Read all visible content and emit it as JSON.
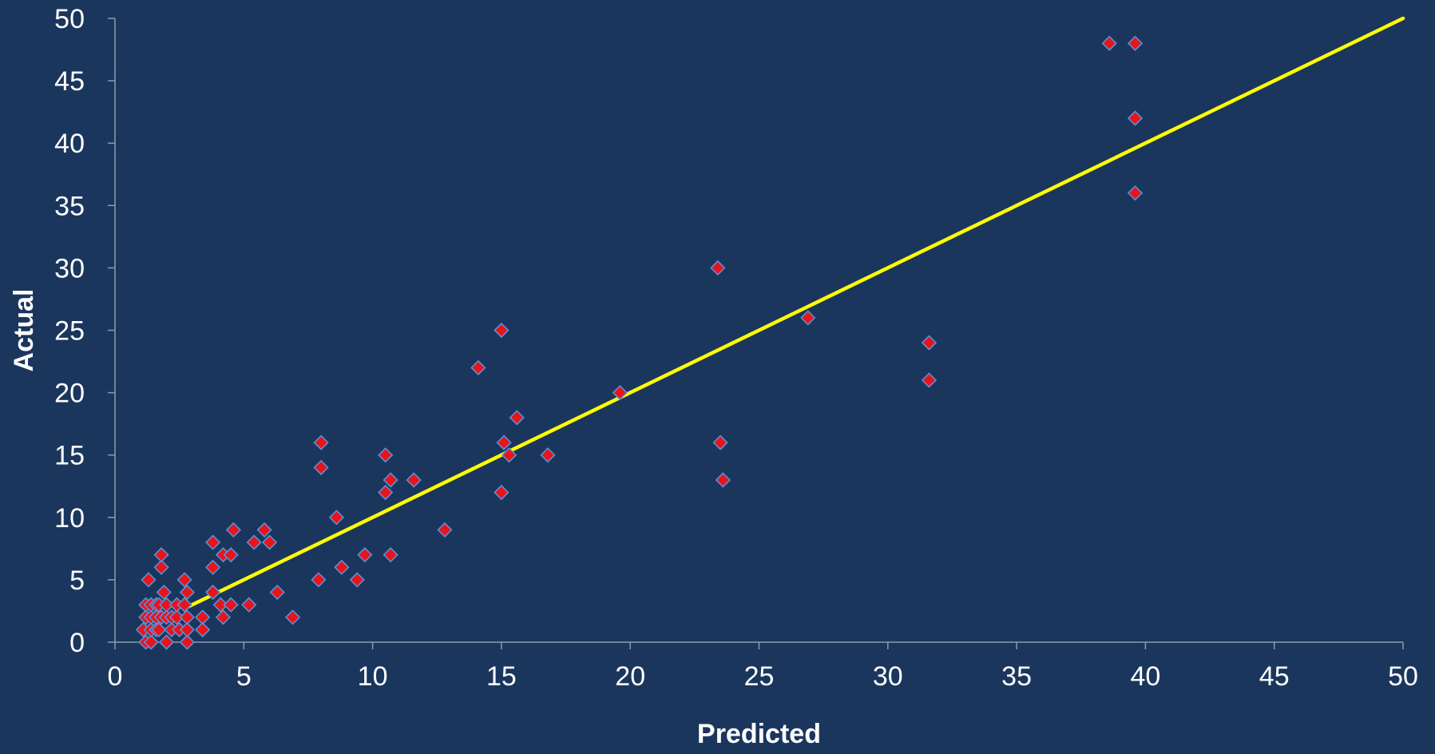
{
  "colors": {
    "background": "#1b365d",
    "axis": "#8a9bb0",
    "point_fill": "#e8141b",
    "point_stroke": "#5b8fd6",
    "reference_line": "#ffff00",
    "text": "#ffffff"
  },
  "chart_data": {
    "type": "scatter",
    "xlabel": "Predicted",
    "ylabel": "Actual",
    "xlim": [
      0,
      50
    ],
    "ylim": [
      0,
      50
    ],
    "x_ticks": [
      "0",
      "5",
      "10",
      "15",
      "20",
      "25",
      "30",
      "35",
      "40",
      "45",
      "50"
    ],
    "y_ticks": [
      "0",
      "5",
      "10",
      "15",
      "20",
      "25",
      "30",
      "35",
      "40",
      "45",
      "50"
    ],
    "grid": false,
    "legend": "none",
    "reference_line": {
      "from": [
        2.8,
        2.8
      ],
      "to": [
        50,
        50
      ]
    },
    "series": [
      {
        "marker": "diamond",
        "points": [
          [
            1.1,
            1
          ],
          [
            1.2,
            0
          ],
          [
            1.2,
            2
          ],
          [
            1.2,
            3
          ],
          [
            1.3,
            5
          ],
          [
            1.4,
            0
          ],
          [
            1.4,
            1
          ],
          [
            1.4,
            2
          ],
          [
            1.4,
            3
          ],
          [
            1.6,
            1
          ],
          [
            1.6,
            2
          ],
          [
            1.6,
            3
          ],
          [
            1.7,
            1
          ],
          [
            1.7,
            3
          ],
          [
            1.8,
            6
          ],
          [
            1.8,
            7
          ],
          [
            1.8,
            2
          ],
          [
            1.9,
            4
          ],
          [
            2.0,
            0
          ],
          [
            2.0,
            2
          ],
          [
            2.0,
            3
          ],
          [
            2.2,
            1
          ],
          [
            2.2,
            2
          ],
          [
            2.4,
            2
          ],
          [
            2.4,
            3
          ],
          [
            2.5,
            1
          ],
          [
            2.7,
            5
          ],
          [
            2.7,
            3
          ],
          [
            2.8,
            0
          ],
          [
            2.8,
            2
          ],
          [
            2.8,
            4
          ],
          [
            2.8,
            1
          ],
          [
            3.4,
            2
          ],
          [
            3.4,
            1
          ],
          [
            3.8,
            8
          ],
          [
            3.8,
            6
          ],
          [
            3.8,
            4
          ],
          [
            4.1,
            3
          ],
          [
            4.2,
            7
          ],
          [
            4.2,
            2
          ],
          [
            4.5,
            7
          ],
          [
            4.5,
            3
          ],
          [
            4.6,
            9
          ],
          [
            5.2,
            3
          ],
          [
            5.4,
            8
          ],
          [
            5.8,
            9
          ],
          [
            6.0,
            8
          ],
          [
            6.3,
            4
          ],
          [
            6.9,
            2
          ],
          [
            7.9,
            5
          ],
          [
            8.0,
            16
          ],
          [
            8.0,
            14
          ],
          [
            8.6,
            10
          ],
          [
            8.8,
            6
          ],
          [
            9.4,
            5
          ],
          [
            9.7,
            7
          ],
          [
            10.5,
            15
          ],
          [
            10.5,
            12
          ],
          [
            10.7,
            13
          ],
          [
            10.7,
            7
          ],
          [
            11.6,
            13
          ],
          [
            12.8,
            9
          ],
          [
            14.1,
            22
          ],
          [
            15.0,
            25
          ],
          [
            15.0,
            12
          ],
          [
            15.1,
            16
          ],
          [
            15.3,
            15
          ],
          [
            15.6,
            18
          ],
          [
            16.8,
            15
          ],
          [
            19.6,
            20
          ],
          [
            23.4,
            30
          ],
          [
            23.5,
            16
          ],
          [
            23.6,
            13
          ],
          [
            26.9,
            26
          ],
          [
            31.6,
            24
          ],
          [
            31.6,
            21
          ],
          [
            38.6,
            48
          ],
          [
            39.6,
            48
          ],
          [
            39.6,
            42
          ],
          [
            39.6,
            36
          ]
        ]
      }
    ]
  }
}
